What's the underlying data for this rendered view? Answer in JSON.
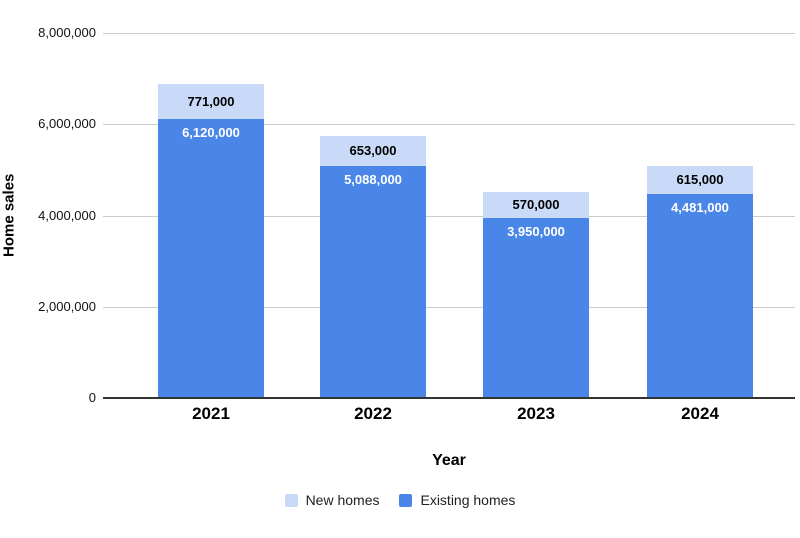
{
  "chart_data": {
    "type": "bar",
    "stacked": true,
    "title": "",
    "xlabel": "Year",
    "ylabel": "Home sales",
    "categories": [
      "2021",
      "2022",
      "2023",
      "2024"
    ],
    "series": [
      {
        "name": "Existing homes",
        "color": "#4a86e8",
        "label_color": "#ffffff",
        "values": [
          6120000,
          5088000,
          3950000,
          4481000
        ],
        "labels": [
          "6,120,000",
          "5,088,000",
          "3,950,000",
          "4,481,000"
        ]
      },
      {
        "name": "New homes",
        "color": "#c9daf8",
        "label_color": "#000000",
        "values": [
          771000,
          653000,
          570000,
          615000
        ],
        "labels": [
          "771,000",
          "653,000",
          "570,000",
          "615,000"
        ]
      }
    ],
    "legend": [
      {
        "label": "New homes",
        "color": "#c9daf8"
      },
      {
        "label": "Existing homes",
        "color": "#4a86e8"
      }
    ],
    "legend_position": "bottom",
    "grid": true,
    "ylim": [
      0,
      8000000
    ],
    "y_ticks": [
      {
        "value": 0,
        "label": "0"
      },
      {
        "value": 2000000,
        "label": "2,000,000"
      },
      {
        "value": 4000000,
        "label": "4,000,000"
      },
      {
        "value": 6000000,
        "label": "6,000,000"
      },
      {
        "value": 8000000,
        "label": "8,000,000"
      }
    ]
  }
}
